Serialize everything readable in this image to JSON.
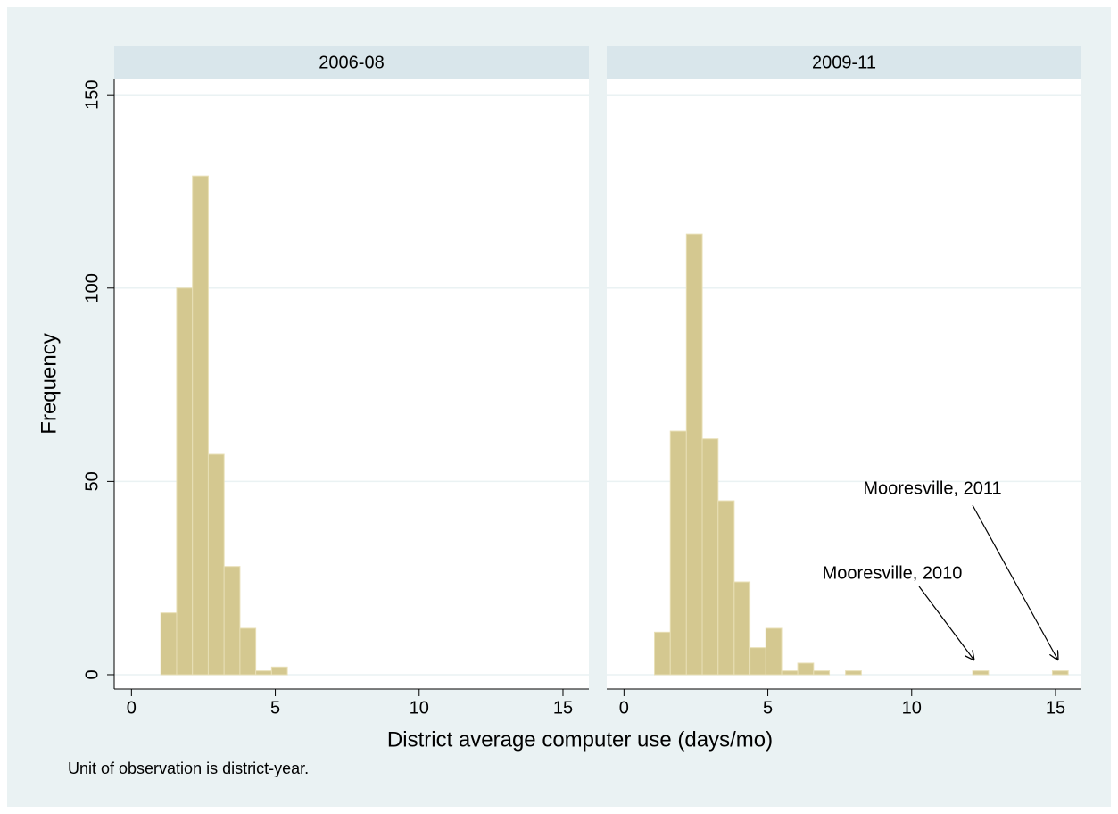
{
  "chart_data": [
    {
      "type": "histogram",
      "title": "2006-08",
      "bins": [
        1.02,
        1.57,
        2.12,
        2.67,
        3.22,
        3.77,
        4.32,
        4.87,
        5.42
      ],
      "values": [
        16,
        100,
        129,
        57,
        28,
        12,
        1,
        2
      ],
      "color": "#d4c890",
      "xlim": [
        -0.6,
        15.9
      ],
      "xticks": [
        0,
        5,
        10,
        15
      ],
      "ylim": [
        -3.7,
        154.2
      ],
      "yticks": [
        0,
        50,
        100,
        150
      ],
      "grid": true
    },
    {
      "type": "histogram",
      "title": "2009-11",
      "bins": [
        1.06,
        1.61,
        2.17,
        2.72,
        3.27,
        3.83,
        4.38,
        4.93,
        5.48,
        6.04,
        6.59,
        7.14,
        7.7,
        8.25,
        8.8,
        9.36,
        9.91,
        10.46,
        11.01,
        11.57,
        12.12,
        12.67,
        13.23,
        13.78,
        14.33,
        14.89,
        15.44
      ],
      "values": [
        11,
        63,
        114,
        61,
        45,
        24,
        7,
        12,
        1,
        3,
        1,
        0,
        1,
        0,
        0,
        0,
        0,
        0,
        0,
        0,
        1,
        0,
        0,
        0,
        0,
        1
      ],
      "color": "#d4c890",
      "xlim": [
        -0.6,
        15.9
      ],
      "xticks": [
        0,
        5,
        10,
        15
      ],
      "ylim": [
        -3.7,
        154.2
      ],
      "yticks": [
        0,
        50,
        100,
        150
      ],
      "grid": true,
      "annotations": [
        "Mooresville, 2010",
        "Mooresville, 2011"
      ]
    }
  ],
  "xlabel": "District average computer use (days/mo)",
  "ylabel": "Frequency",
  "note": "Unit of observation is district-year."
}
